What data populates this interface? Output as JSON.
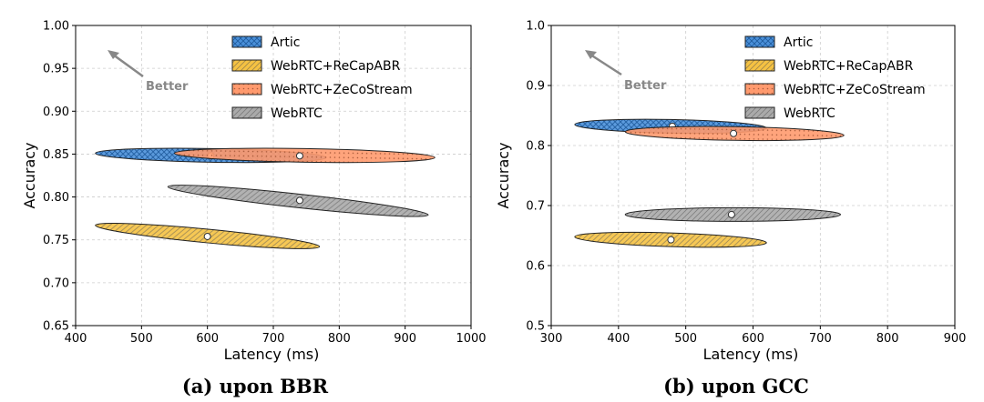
{
  "chart_data": [
    {
      "type": "scatter",
      "caption": "(a) upon BBR",
      "xlabel": "Latency (ms)",
      "ylabel": "Accuracy",
      "xlim": [
        400,
        1000
      ],
      "ylim": [
        0.65,
        1.0
      ],
      "xticks": [
        "400",
        "500",
        "600",
        "700",
        "800",
        "900",
        "1000"
      ],
      "yticks": [
        "0.65",
        "0.70",
        "0.75",
        "0.80",
        "0.85",
        "0.90",
        "0.95",
        "1.00"
      ],
      "grid": true,
      "legend_position": "top-center",
      "annotation": "Better",
      "series": [
        {
          "name": "Artic",
          "color": "#4a90d9",
          "pattern": "crosshatch",
          "center": [
            605,
            0.848
          ],
          "latency_range": [
            430,
            780
          ],
          "accuracy_at_ends": [
            0.851,
            0.846
          ]
        },
        {
          "name": "WebRTC+ReCapABR",
          "color": "#f5c242",
          "pattern": "diagonal",
          "center": [
            600,
            0.754
          ],
          "latency_range": [
            430,
            770
          ],
          "accuracy_at_ends": [
            0.767,
            0.742
          ]
        },
        {
          "name": "WebRTC+ZeCoStream",
          "color": "#ff9a6e",
          "pattern": "dots",
          "center": [
            740,
            0.848
          ],
          "latency_range": [
            550,
            945
          ],
          "accuracy_at_ends": [
            0.851,
            0.846
          ]
        },
        {
          "name": "WebRTC",
          "color": "#aaaaaa",
          "pattern": "diagonal",
          "center": [
            740,
            0.796
          ],
          "latency_range": [
            540,
            935
          ],
          "accuracy_at_ends": [
            0.812,
            0.779
          ]
        }
      ]
    },
    {
      "type": "scatter",
      "caption": "(b) upon GCC",
      "xlabel": "Latency (ms)",
      "ylabel": "Accuracy",
      "xlim": [
        300,
        900
      ],
      "ylim": [
        0.5,
        1.0
      ],
      "xticks": [
        "300",
        "400",
        "500",
        "600",
        "700",
        "800",
        "900"
      ],
      "yticks": [
        "0.5",
        "0.6",
        "0.7",
        "0.8",
        "0.9",
        "1.0"
      ],
      "grid": true,
      "legend_position": "top-center",
      "annotation": "Better",
      "series": [
        {
          "name": "Artic",
          "color": "#4a90d9",
          "pattern": "crosshatch",
          "center": [
            480,
            0.832
          ],
          "latency_range": [
            335,
            620
          ],
          "accuracy_at_ends": [
            0.835,
            0.829
          ]
        },
        {
          "name": "WebRTC+ReCapABR",
          "color": "#f5c242",
          "pattern": "diagonal",
          "center": [
            478,
            0.643
          ],
          "latency_range": [
            335,
            620
          ],
          "accuracy_at_ends": [
            0.648,
            0.638
          ]
        },
        {
          "name": "WebRTC+ZeCoStream",
          "color": "#ff9a6e",
          "pattern": "dots",
          "center": [
            571,
            0.82
          ],
          "latency_range": [
            410,
            735
          ],
          "accuracy_at_ends": [
            0.823,
            0.817
          ]
        },
        {
          "name": "WebRTC",
          "color": "#aaaaaa",
          "pattern": "diagonal",
          "center": [
            568,
            0.685
          ],
          "latency_range": [
            410,
            730
          ],
          "accuracy_at_ends": [
            0.685,
            0.685
          ]
        }
      ]
    }
  ]
}
